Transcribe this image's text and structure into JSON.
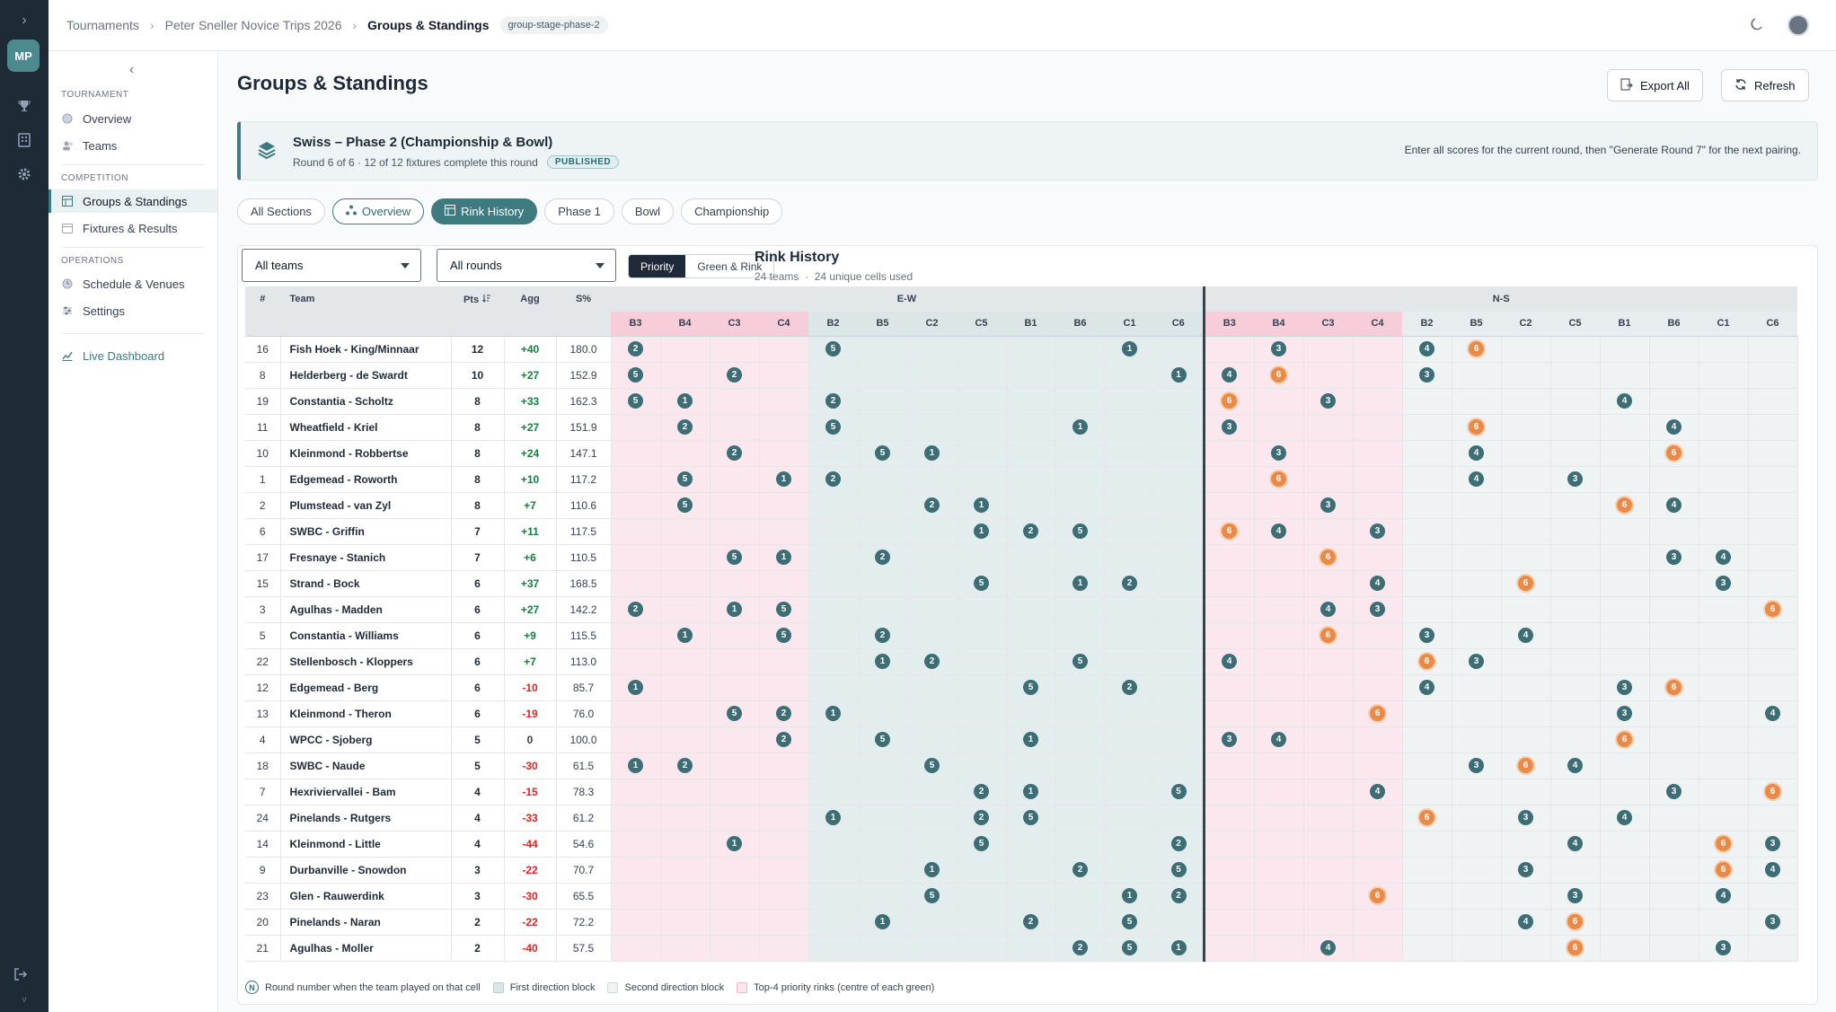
{
  "rail": {
    "user_initials": "MP",
    "version": "v"
  },
  "breadcrumb": [
    "Tournaments",
    "Peter Sneller Novice Trips 2026",
    "Groups & Standings"
  ],
  "breadcrumb_pill": "group-stage-phase-2",
  "sidebar": {
    "sections": [
      {
        "label": "TOURNAMENT",
        "items": [
          {
            "label": "Overview",
            "icon": "circle-icon"
          },
          {
            "label": "Teams",
            "icon": "users-icon"
          }
        ]
      },
      {
        "label": "COMPETITION",
        "items": [
          {
            "label": "Groups & Standings",
            "icon": "table-icon",
            "active": true
          },
          {
            "label": "Fixtures & Results",
            "icon": "calendar-icon"
          }
        ]
      },
      {
        "label": "OPERATIONS",
        "items": [
          {
            "label": "Schedule & Venues",
            "icon": "clock-icon"
          },
          {
            "label": "Settings",
            "icon": "sliders-icon"
          }
        ]
      }
    ],
    "live": "Live Dashboard"
  },
  "page": {
    "title": "Groups & Standings",
    "export_label": "Export All",
    "refresh_label": "Refresh"
  },
  "banner": {
    "title": "Swiss – Phase 2 (Championship & Bowl)",
    "subtitle": "Round 6 of 6 · 12 of 12 fixtures complete this round",
    "badge": "PUBLISHED",
    "note": "Enter all scores for the current round, then \"Generate Round 7\" for the next pairing."
  },
  "tabs": [
    "All Sections",
    "Overview",
    "Rink History",
    "Phase 1",
    "Bowl",
    "Championship"
  ],
  "filters": {
    "teams": "All teams",
    "rounds": "All rounds"
  },
  "segments": [
    "Priority",
    "Green & Rink"
  ],
  "rink_history": {
    "title": "Rink History",
    "team_count": "24 teams",
    "cells_used": "24 unique cells used"
  },
  "table": {
    "headers": {
      "num": "#",
      "team": "Team",
      "pts": "Pts",
      "agg": "Agg",
      "shot_pct": "S%"
    },
    "groups": [
      "E-W",
      "N-S"
    ],
    "columns": [
      "B3",
      "B4",
      "C3",
      "C4",
      "B2",
      "B5",
      "C2",
      "C5",
      "B1",
      "B6",
      "C1",
      "C6"
    ],
    "column_bands": [
      "p",
      "p",
      "p",
      "p",
      "t",
      "t",
      "t",
      "t",
      "t",
      "t",
      "t",
      "t"
    ],
    "ns_bands": [
      "p",
      "p",
      "p",
      "p",
      "g",
      "g",
      "g",
      "g",
      "g",
      "g",
      "g",
      "g"
    ],
    "rows": [
      {
        "num": "16",
        "team": "Fish Hoek - King/Minnaar",
        "pts": "12",
        "agg": "+40",
        "sp": "180.0",
        "ew": {
          "B3": 2,
          "B2": 5,
          "C1": 1
        },
        "ns": {
          "B4": 3,
          "B2": 4,
          "B5": 6
        }
      },
      {
        "num": "8",
        "team": "Helderberg - de Swardt",
        "pts": "10",
        "agg": "+27",
        "sp": "152.9",
        "ew": {
          "B3": 5,
          "C3": 2,
          "C6": 1
        },
        "ns": {
          "B3": 4,
          "B4": 6,
          "B2": 3
        }
      },
      {
        "num": "19",
        "team": "Constantia - Scholtz",
        "pts": "8",
        "agg": "+33",
        "sp": "162.3",
        "ew": {
          "B3": 5,
          "B4": 1,
          "B2": 2
        },
        "ns": {
          "B3": 6,
          "C3": 3,
          "B1": 4
        }
      },
      {
        "num": "11",
        "team": "Wheatfield - Kriel",
        "pts": "8",
        "agg": "+27",
        "sp": "151.9",
        "ew": {
          "B4": 2,
          "B2": 5,
          "B6": 1
        },
        "ns": {
          "B3": 3,
          "B5": 6,
          "B6": 4
        }
      },
      {
        "num": "10",
        "team": "Kleinmond - Robbertse",
        "pts": "8",
        "agg": "+24",
        "sp": "147.1",
        "ew": {
          "C3": 2,
          "B5": 5,
          "C2": 1
        },
        "ns": {
          "B4": 3,
          "B5": 4,
          "B6": 6
        }
      },
      {
        "num": "1",
        "team": "Edgemead - Roworth",
        "pts": "8",
        "agg": "+10",
        "sp": "117.2",
        "ew": {
          "B4": 5,
          "C4": 1,
          "B2": 2
        },
        "ns": {
          "B4": 6,
          "B5": 4,
          "C5": 3
        }
      },
      {
        "num": "2",
        "team": "Plumstead - van Zyl",
        "pts": "8",
        "agg": "+7",
        "sp": "110.6",
        "ew": {
          "B4": 5,
          "C2": 2,
          "C5": 1
        },
        "ns": {
          "C3": 3,
          "B1": 6,
          "B6": 4
        }
      },
      {
        "num": "6",
        "team": "SWBC - Griffin",
        "pts": "7",
        "agg": "+11",
        "sp": "117.5",
        "ew": {
          "C5": 1,
          "B1": 2,
          "B6": 5
        },
        "ns": {
          "B3": 6,
          "B4": 4,
          "C4": 3
        }
      },
      {
        "num": "17",
        "team": "Fresnaye - Stanich",
        "pts": "7",
        "agg": "+6",
        "sp": "110.5",
        "ew": {
          "C3": 5,
          "C4": 1,
          "B5": 2
        },
        "ns": {
          "C3": 6,
          "B6": 3,
          "C1": 4
        }
      },
      {
        "num": "15",
        "team": "Strand - Bock",
        "pts": "6",
        "agg": "+37",
        "sp": "168.5",
        "ew": {
          "C5": 5,
          "B6": 1,
          "C1": 2
        },
        "ns": {
          "C4": 4,
          "C2": 6,
          "C1": 3
        }
      },
      {
        "num": "3",
        "team": "Agulhas - Madden",
        "pts": "6",
        "agg": "+27",
        "sp": "142.2",
        "ew": {
          "B3": 2,
          "C3": 1,
          "C4": 5
        },
        "ns": {
          "C3": 4,
          "C4": 3,
          "C6": 6
        }
      },
      {
        "num": "5",
        "team": "Constantia - Williams",
        "pts": "6",
        "agg": "+9",
        "sp": "115.5",
        "ew": {
          "B4": 1,
          "C4": 5,
          "B5": 2
        },
        "ns": {
          "C3": 6,
          "B2": 3,
          "C2": 4
        }
      },
      {
        "num": "22",
        "team": "Stellenbosch - Kloppers",
        "pts": "6",
        "agg": "+7",
        "sp": "113.0",
        "ew": {
          "B5": 1,
          "C2": 2,
          "B6": 5
        },
        "ns": {
          "B3": 4,
          "B2": 6,
          "B5": 3
        }
      },
      {
        "num": "12",
        "team": "Edgemead - Berg",
        "pts": "6",
        "agg": "-10",
        "sp": "85.7",
        "ew": {
          "B3": 1,
          "B1": 5,
          "C1": 2
        },
        "ns": {
          "B2": 4,
          "B1": 3,
          "B6": 6
        }
      },
      {
        "num": "13",
        "team": "Kleinmond - Theron",
        "pts": "6",
        "agg": "-19",
        "sp": "76.0",
        "ew": {
          "C3": 5,
          "C4": 2,
          "B2": 1
        },
        "ns": {
          "C4": 6,
          "B1": 3,
          "C6": 4
        }
      },
      {
        "num": "4",
        "team": "WPCC - Sjoberg",
        "pts": "5",
        "agg": "0",
        "sp": "100.0",
        "ew": {
          "C4": 2,
          "B5": 5,
          "B1": 1
        },
        "ns": {
          "B3": 3,
          "B4": 4,
          "B1": 6
        }
      },
      {
        "num": "18",
        "team": "SWBC - Naude",
        "pts": "5",
        "agg": "-30",
        "sp": "61.5",
        "ew": {
          "B3": 1,
          "B4": 2,
          "C2": 5
        },
        "ns": {
          "B5": 3,
          "C2": 6,
          "C5": 4
        }
      },
      {
        "num": "7",
        "team": "Hexriviervallei - Bam",
        "pts": "4",
        "agg": "-15",
        "sp": "78.3",
        "ew": {
          "C5": 2,
          "B1": 1,
          "C6": 5
        },
        "ns": {
          "C4": 4,
          "B6": 3,
          "C6": 6
        }
      },
      {
        "num": "24",
        "team": "Pinelands - Rutgers",
        "pts": "4",
        "agg": "-33",
        "sp": "61.2",
        "ew": {
          "B2": 1,
          "C5": 2,
          "B1": 5
        },
        "ns": {
          "B2": 6,
          "C2": 3,
          "B1": 4
        }
      },
      {
        "num": "14",
        "team": "Kleinmond - Little",
        "pts": "4",
        "agg": "-44",
        "sp": "54.6",
        "ew": {
          "C3": 1,
          "C5": 5,
          "C6": 2
        },
        "ns": {
          "C5": 4,
          "C1": 6,
          "C6": 3
        }
      },
      {
        "num": "9",
        "team": "Durbanville - Snowdon",
        "pts": "3",
        "agg": "-22",
        "sp": "70.7",
        "ew": {
          "C2": 1,
          "B6": 2,
          "C6": 5
        },
        "ns": {
          "C2": 3,
          "C1": 6,
          "C6": 4
        }
      },
      {
        "num": "23",
        "team": "Glen - Rauwerdink",
        "pts": "3",
        "agg": "-30",
        "sp": "65.5",
        "ew": {
          "C2": 5,
          "C1": 1,
          "C6": 2
        },
        "ns": {
          "C4": 6,
          "C5": 3,
          "C1": 4
        }
      },
      {
        "num": "20",
        "team": "Pinelands - Naran",
        "pts": "2",
        "agg": "-22",
        "sp": "72.2",
        "ew": {
          "B5": 1,
          "B1": 2,
          "C1": 5
        },
        "ns": {
          "C2": 4,
          "C5": 6,
          "C6": 3
        }
      },
      {
        "num": "21",
        "team": "Agulhas - Moller",
        "pts": "2",
        "agg": "-40",
        "sp": "57.5",
        "ew": {
          "B6": 2,
          "C1": 5,
          "C6": 1
        },
        "ns": {
          "C3": 4,
          "C5": 6,
          "C1": 3
        }
      }
    ]
  },
  "legend": {
    "dot_sample": "N",
    "round": "Round number when the team played on that cell",
    "first": "First direction block",
    "second": "Second direction block",
    "priority": "Top-4 priority rinks (centre of each green)"
  },
  "colors": {
    "accent": "#3d7b80",
    "dot": "#3e6e75",
    "dot_highlight": "#ea8a48",
    "priority_band": "#fbe8ee",
    "first_block": "#e4eded",
    "second_block": "#eff3f4"
  }
}
